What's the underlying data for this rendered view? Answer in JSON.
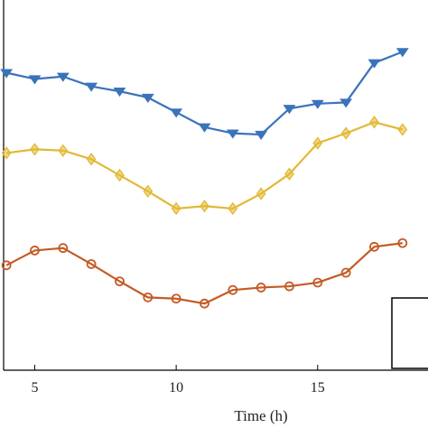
{
  "chart_data": {
    "type": "line",
    "xlabel": "Time (h)",
    "xticks": [
      5,
      10,
      15
    ],
    "xlim": [
      3.9,
      18.9
    ],
    "ylim": [
      0,
      15
    ],
    "grid": false,
    "series": [
      {
        "color": "#3A73BB",
        "marker": "triangle-down",
        "x": [
          4,
          5,
          6,
          7,
          8,
          9,
          10,
          11,
          12,
          13,
          14,
          15,
          16,
          17,
          18
        ],
        "y": [
          12.05,
          11.8,
          11.9,
          11.5,
          11.3,
          11.05,
          10.45,
          9.85,
          9.6,
          9.55,
          10.6,
          10.8,
          10.85,
          12.45,
          12.9
        ]
      },
      {
        "color": "#E2B935",
        "marker": "diamond",
        "x": [
          4,
          5,
          6,
          7,
          8,
          9,
          10,
          11,
          12,
          13,
          14,
          15,
          16,
          17,
          18
        ],
        "y": [
          8.8,
          8.95,
          8.9,
          8.55,
          7.9,
          7.25,
          6.55,
          6.65,
          6.55,
          7.15,
          7.95,
          9.2,
          9.6,
          10.05,
          9.75
        ]
      },
      {
        "color": "#C55A24",
        "marker": "circle",
        "x": [
          4,
          5,
          6,
          7,
          8,
          9,
          10,
          11,
          12,
          13,
          14,
          15,
          16,
          17,
          18
        ],
        "y": [
          4.25,
          4.85,
          4.95,
          4.3,
          3.6,
          2.95,
          2.9,
          2.7,
          3.25,
          3.35,
          3.4,
          3.55,
          3.95,
          5.0,
          5.15
        ]
      }
    ]
  }
}
